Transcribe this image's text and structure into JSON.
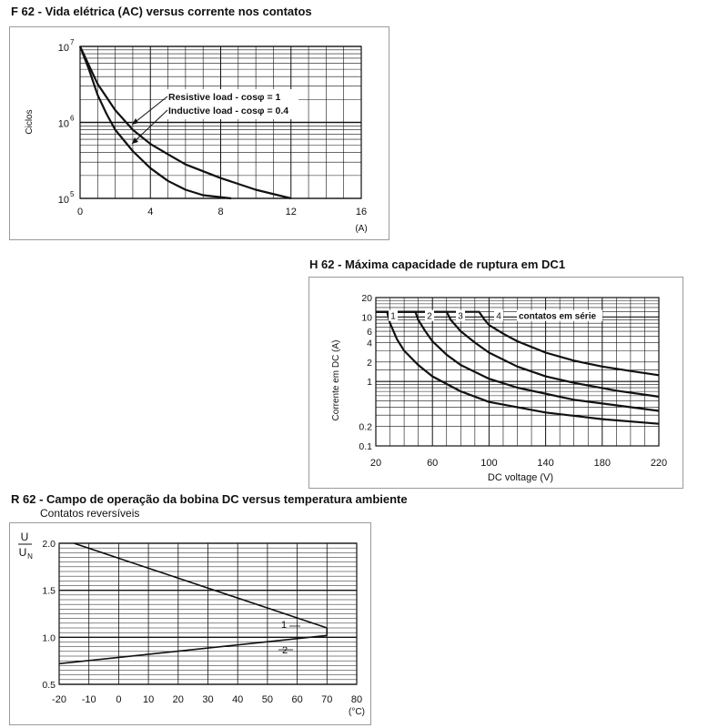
{
  "chart_data": [
    {
      "id": "f62",
      "type": "line",
      "title": "F 62 - Vida elétrica (AC) versus corrente nos contatos",
      "xlabel": "(A)",
      "ylabel": "Ciclos",
      "xlim": [
        0,
        16
      ],
      "ylim_log10": [
        5,
        7
      ],
      "xticks": [
        "0",
        "4",
        "8",
        "12",
        "16"
      ],
      "yticks": [
        {
          "base": "10",
          "exp": "5"
        },
        {
          "base": "10",
          "exp": "6"
        },
        {
          "base": "10",
          "exp": "7"
        }
      ],
      "series": [
        {
          "name": "Resistive load - cosφ = 1",
          "x": [
            0,
            1,
            2,
            3,
            4,
            5,
            6,
            8,
            10,
            12
          ],
          "y": [
            10000000,
            3200000,
            1450000,
            800000,
            520000,
            380000,
            280000,
            185000,
            130000,
            100000
          ]
        },
        {
          "name": "Inductive load - cosφ = 0.4",
          "x": [
            0,
            0.5,
            1,
            1.5,
            2,
            3,
            4,
            5,
            6,
            7,
            8.6
          ],
          "y": [
            10000000,
            5000000,
            2300000,
            1300000,
            800000,
            420000,
            250000,
            170000,
            130000,
            110000,
            100000
          ]
        }
      ],
      "annotations": [
        "Resistive load - cosφ = 1",
        "Inductive load - cosφ = 0.4"
      ]
    },
    {
      "id": "h62",
      "type": "line",
      "title": "H 62 - Máxima capacidade de ruptura em DC1",
      "xlabel": "DC voltage (V)",
      "ylabel": "Corrente em DC (A)",
      "xlim": [
        20,
        220
      ],
      "ylim_log": [
        0.1,
        20
      ],
      "xticks": [
        "20",
        "60",
        "100",
        "140",
        "180",
        "220"
      ],
      "yticks": [
        "0.1",
        "0.2",
        "1",
        "2",
        "4",
        "6",
        "10",
        "20"
      ],
      "series_label": "contatos em série",
      "series": [
        {
          "name": "1",
          "x": [
            20,
            28,
            30,
            35,
            40,
            50,
            60,
            80,
            100,
            140,
            180,
            220
          ],
          "y": [
            12,
            12,
            8,
            4.5,
            3,
            1.8,
            1.2,
            0.7,
            0.48,
            0.33,
            0.26,
            0.22
          ]
        },
        {
          "name": "2",
          "x": [
            20,
            48,
            50,
            55,
            60,
            70,
            80,
            100,
            120,
            160,
            220
          ],
          "y": [
            12,
            12,
            9,
            6,
            4.2,
            2.6,
            1.8,
            1.1,
            0.8,
            0.52,
            0.35
          ]
        },
        {
          "name": "3",
          "x": [
            20,
            70,
            73,
            80,
            90,
            100,
            120,
            140,
            160,
            190,
            220
          ],
          "y": [
            12,
            12,
            9,
            6,
            4,
            2.8,
            1.7,
            1.2,
            0.95,
            0.72,
            0.58
          ]
        },
        {
          "name": "4",
          "x": [
            20,
            93,
            97,
            100,
            110,
            120,
            140,
            160,
            180,
            200,
            220
          ],
          "y": [
            12,
            12,
            9,
            7.5,
            5.5,
            4.2,
            2.8,
            2.1,
            1.7,
            1.45,
            1.25
          ]
        }
      ]
    },
    {
      "id": "r62",
      "type": "line",
      "title": "R 62 - Campo de operação da bobina DC versus temperatura ambiente",
      "subtitle": "Contatos reversíveis",
      "xlabel": "(°C)",
      "ylabel_num": "U",
      "ylabel_den": "U",
      "ylabel_den_sub": "N",
      "xlim": [
        -20,
        80
      ],
      "ylim": [
        0.5,
        2.0
      ],
      "xticks": [
        "-20",
        "-10",
        "0",
        "10",
        "20",
        "30",
        "40",
        "50",
        "60",
        "70",
        "80"
      ],
      "yticks": [
        "0.5",
        "1.0",
        "1.5",
        "2.0"
      ],
      "series": [
        {
          "name": "1",
          "x": [
            -15,
            70
          ],
          "y": [
            2.0,
            1.1
          ]
        },
        {
          "name": "2",
          "x": [
            -20,
            70
          ],
          "y": [
            0.72,
            1.02
          ]
        }
      ]
    }
  ]
}
